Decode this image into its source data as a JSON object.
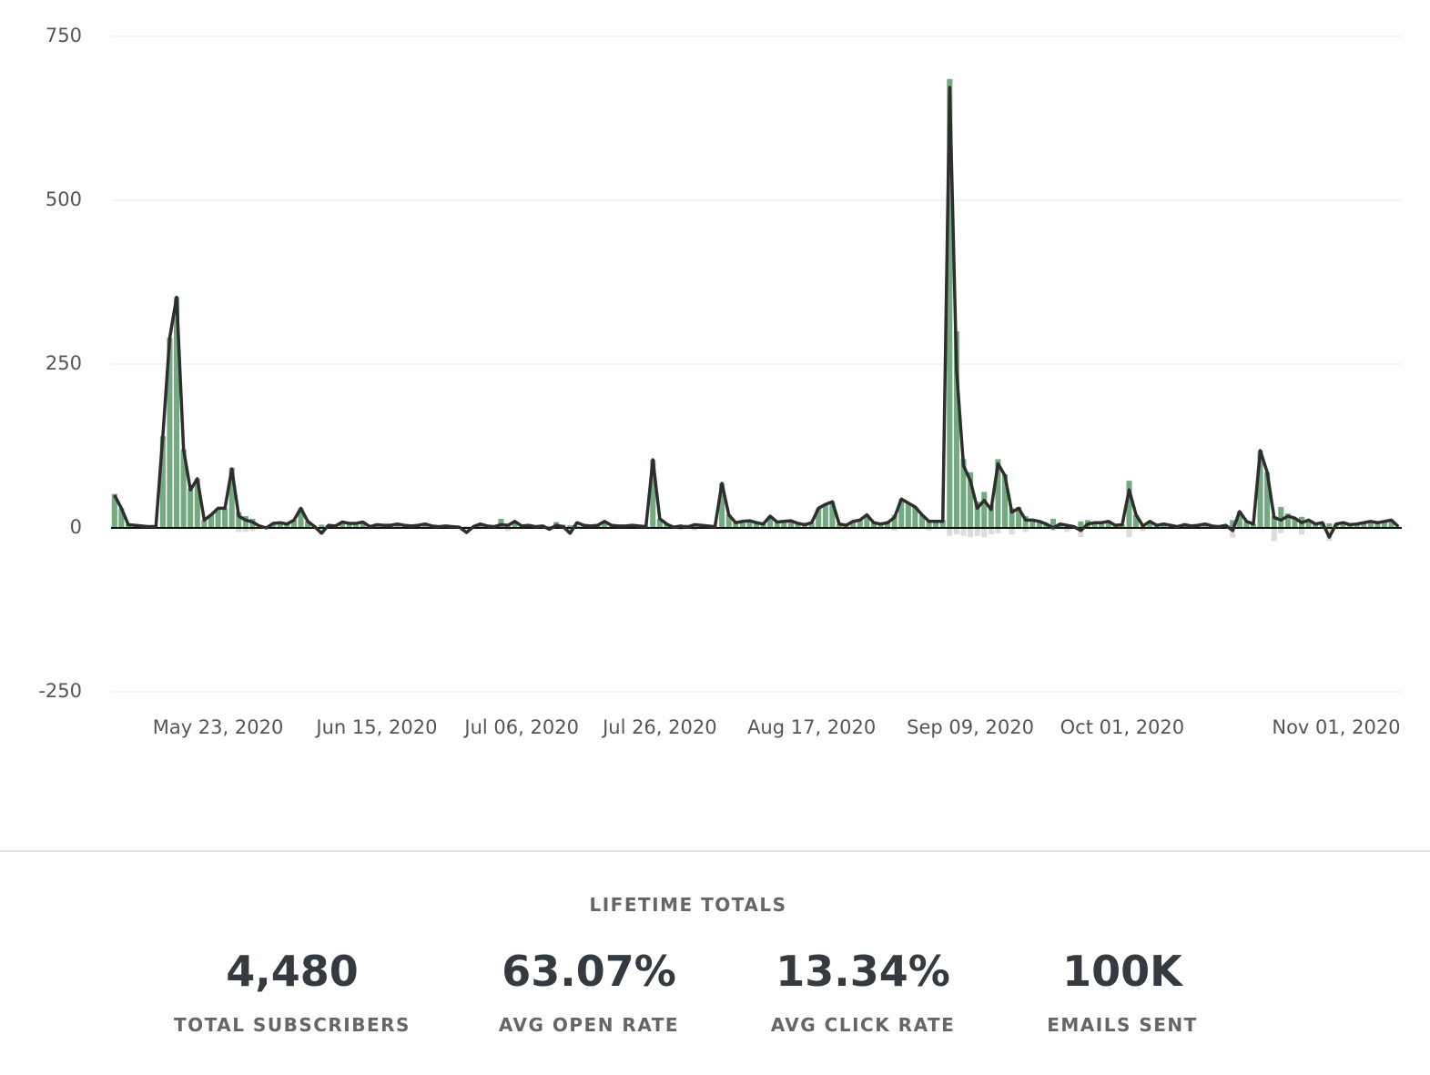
{
  "chart_data": {
    "type": "bar",
    "x": [
      "2020-05-08",
      "2020-05-09",
      "2020-05-10",
      "2020-05-11",
      "2020-05-12",
      "2020-05-13",
      "2020-05-14",
      "2020-05-15",
      "2020-05-16",
      "2020-05-17",
      "2020-05-18",
      "2020-05-19",
      "2020-05-20",
      "2020-05-21",
      "2020-05-22",
      "2020-05-23",
      "2020-05-24",
      "2020-05-25",
      "2020-05-26",
      "2020-05-27",
      "2020-05-28",
      "2020-05-29",
      "2020-05-30",
      "2020-05-31",
      "2020-06-01",
      "2020-06-02",
      "2020-06-03",
      "2020-06-04",
      "2020-06-05",
      "2020-06-06",
      "2020-06-07",
      "2020-06-08",
      "2020-06-09",
      "2020-06-10",
      "2020-06-11",
      "2020-06-12",
      "2020-06-13",
      "2020-06-14",
      "2020-06-15",
      "2020-06-16",
      "2020-06-17",
      "2020-06-18",
      "2020-06-19",
      "2020-06-20",
      "2020-06-21",
      "2020-06-22",
      "2020-06-23",
      "2020-06-24",
      "2020-06-25",
      "2020-06-26",
      "2020-06-27",
      "2020-06-28",
      "2020-06-29",
      "2020-06-30",
      "2020-07-01",
      "2020-07-02",
      "2020-07-03",
      "2020-07-04",
      "2020-07-05",
      "2020-07-06",
      "2020-07-07",
      "2020-07-08",
      "2020-07-09",
      "2020-07-10",
      "2020-07-11",
      "2020-07-12",
      "2020-07-13",
      "2020-07-14",
      "2020-07-15",
      "2020-07-16",
      "2020-07-17",
      "2020-07-18",
      "2020-07-19",
      "2020-07-20",
      "2020-07-21",
      "2020-07-22",
      "2020-07-23",
      "2020-07-24",
      "2020-07-25",
      "2020-07-26",
      "2020-07-27",
      "2020-07-28",
      "2020-07-29",
      "2020-07-30",
      "2020-07-31",
      "2020-08-01",
      "2020-08-02",
      "2020-08-03",
      "2020-08-04",
      "2020-08-05",
      "2020-08-06",
      "2020-08-07",
      "2020-08-08",
      "2020-08-09",
      "2020-08-10",
      "2020-08-11",
      "2020-08-12",
      "2020-08-13",
      "2020-08-14",
      "2020-08-15",
      "2020-08-16",
      "2020-08-17",
      "2020-08-18",
      "2020-08-19",
      "2020-08-20",
      "2020-08-21",
      "2020-08-22",
      "2020-08-23",
      "2020-08-24",
      "2020-08-25",
      "2020-08-26",
      "2020-08-27",
      "2020-08-28",
      "2020-08-29",
      "2020-08-30",
      "2020-08-31",
      "2020-09-01",
      "2020-09-02",
      "2020-09-03",
      "2020-09-04",
      "2020-09-05",
      "2020-09-06",
      "2020-09-07",
      "2020-09-08",
      "2020-09-09",
      "2020-09-10",
      "2020-09-11",
      "2020-09-12",
      "2020-09-13",
      "2020-09-14",
      "2020-09-15",
      "2020-09-16",
      "2020-09-17",
      "2020-09-18",
      "2020-09-19",
      "2020-09-20",
      "2020-09-21",
      "2020-09-22",
      "2020-09-23",
      "2020-09-24",
      "2020-09-25",
      "2020-09-26",
      "2020-09-27",
      "2020-09-28",
      "2020-09-29",
      "2020-09-30",
      "2020-10-01",
      "2020-10-02",
      "2020-10-03",
      "2020-10-04",
      "2020-10-05",
      "2020-10-06",
      "2020-10-07",
      "2020-10-08",
      "2020-10-09",
      "2020-10-10",
      "2020-10-11",
      "2020-10-12",
      "2020-10-13",
      "2020-10-14",
      "2020-10-15",
      "2020-10-16",
      "2020-10-17",
      "2020-10-18",
      "2020-10-19",
      "2020-10-20",
      "2020-10-21",
      "2020-10-22",
      "2020-10-23",
      "2020-10-24",
      "2020-10-25",
      "2020-10-26",
      "2020-10-27",
      "2020-10-28",
      "2020-10-29",
      "2020-10-30",
      "2020-10-31",
      "2020-11-01",
      "2020-11-02",
      "2020-11-03",
      "2020-11-04",
      "2020-11-05",
      "2020-11-06",
      "2020-11-07",
      "2020-11-08",
      "2020-11-09",
      "2020-11-10"
    ],
    "xlim": [
      "2020-05-08",
      "2020-11-10"
    ],
    "xticks": [
      {
        "value": "2020-05-23",
        "label": "May 23, 2020"
      },
      {
        "value": "2020-06-15",
        "label": "Jun 15, 2020"
      },
      {
        "value": "2020-07-06",
        "label": "Jul 06, 2020"
      },
      {
        "value": "2020-07-26",
        "label": "Jul 26, 2020"
      },
      {
        "value": "2020-08-17",
        "label": "Aug 17, 2020"
      },
      {
        "value": "2020-09-09",
        "label": "Sep 09, 2020"
      },
      {
        "value": "2020-10-01",
        "label": "Oct 01, 2020"
      },
      {
        "value": "2020-11-01",
        "label": "Nov 01, 2020"
      }
    ],
    "ylim": [
      -250,
      750
    ],
    "yticks": [
      750,
      500,
      250,
      0,
      -250
    ],
    "grid": true,
    "series": [
      {
        "type": "bar",
        "color": "#74aa80",
        "values": [
          52,
          30,
          6,
          4,
          3,
          3,
          2,
          140,
          290,
          352,
          120,
          60,
          75,
          12,
          20,
          30,
          30,
          92,
          24,
          18,
          14,
          4,
          1,
          7,
          9,
          7,
          12,
          30,
          10,
          2,
          5,
          4,
          3,
          9,
          7,
          7,
          9,
          2,
          5,
          4,
          4,
          6,
          4,
          3,
          4,
          6,
          3,
          2,
          3,
          2,
          1,
          2,
          2,
          6,
          3,
          2,
          14,
          4,
          10,
          3,
          4,
          2,
          5,
          3,
          9,
          5,
          4,
          3,
          4,
          5,
          4,
          10,
          4,
          3,
          3,
          4,
          3,
          2,
          104,
          14,
          6,
          4,
          3,
          5,
          5,
          4,
          3,
          2,
          68,
          20,
          8,
          10,
          11,
          8,
          6,
          18,
          9,
          10,
          11,
          7,
          5,
          8,
          30,
          36,
          40,
          6,
          4,
          10,
          12,
          20,
          8,
          6,
          8,
          20,
          44,
          38,
          32,
          20,
          12,
          10,
          12,
          685,
          300,
          105,
          85,
          40,
          55,
          35,
          105,
          82,
          30,
          32,
          18,
          12,
          10,
          6,
          14,
          6,
          4,
          2,
          10,
          12,
          8,
          8,
          10,
          4,
          5,
          72,
          20,
          6,
          10,
          4,
          6,
          4,
          2,
          5,
          3,
          4,
          6,
          3,
          2,
          4,
          12,
          25,
          10,
          6,
          118,
          85,
          18,
          32,
          22,
          15,
          17,
          12,
          6,
          8,
          7,
          6,
          8,
          5,
          6,
          8,
          10,
          8,
          10,
          12,
          2
        ]
      },
      {
        "type": "bar",
        "color": "#dcdcdc",
        "values": [
          0,
          0,
          0,
          0,
          0,
          0,
          0,
          0,
          0,
          0,
          0,
          0,
          0,
          0,
          0,
          0,
          0,
          0,
          -6,
          -6,
          -5,
          0,
          0,
          0,
          0,
          0,
          0,
          0,
          0,
          0,
          -10,
          0,
          0,
          0,
          0,
          0,
          0,
          0,
          0,
          0,
          0,
          0,
          0,
          0,
          0,
          0,
          0,
          0,
          0,
          0,
          0,
          -8,
          0,
          0,
          0,
          0,
          0,
          -5,
          0,
          0,
          0,
          0,
          0,
          0,
          0,
          0,
          -10,
          0,
          0,
          0,
          0,
          0,
          0,
          0,
          0,
          0,
          0,
          0,
          0,
          0,
          0,
          0,
          -3,
          0,
          -4,
          0,
          0,
          0,
          0,
          0,
          0,
          0,
          0,
          0,
          0,
          0,
          0,
          0,
          0,
          0,
          0,
          0,
          0,
          0,
          0,
          0,
          0,
          0,
          0,
          0,
          0,
          0,
          0,
          -4,
          0,
          0,
          0,
          0,
          -4,
          0,
          0,
          -12,
          -10,
          -12,
          -14,
          -12,
          -14,
          -10,
          -8,
          0,
          -10,
          0,
          -6,
          0,
          0,
          0,
          -4,
          0,
          -6,
          0,
          -14,
          0,
          0,
          0,
          0,
          0,
          0,
          -14,
          0,
          -5,
          0,
          0,
          0,
          0,
          0,
          0,
          0,
          0,
          0,
          0,
          0,
          0,
          -15,
          0,
          0,
          0,
          0,
          0,
          -20,
          -8,
          0,
          0,
          -10,
          0,
          0,
          0,
          -20,
          0,
          0,
          0,
          0,
          0,
          0,
          0,
          0,
          0,
          0
        ]
      },
      {
        "type": "line",
        "color": "#2e2e2e",
        "values": [
          50,
          30,
          5,
          4,
          3,
          2,
          2,
          140,
          290,
          352,
          120,
          58,
          75,
          12,
          20,
          30,
          30,
          90,
          18,
          12,
          9,
          3,
          0,
          7,
          8,
          6,
          12,
          30,
          10,
          2,
          -8,
          4,
          3,
          9,
          7,
          7,
          9,
          2,
          5,
          4,
          4,
          6,
          4,
          3,
          4,
          6,
          3,
          2,
          3,
          2,
          1,
          -7,
          2,
          6,
          3,
          2,
          5,
          4,
          10,
          3,
          4,
          2,
          3,
          -2,
          4,
          2,
          -8,
          8,
          4,
          3,
          4,
          10,
          4,
          3,
          3,
          4,
          3,
          2,
          104,
          14,
          6,
          1,
          3,
          1,
          5,
          4,
          3,
          2,
          68,
          20,
          8,
          10,
          11,
          8,
          6,
          18,
          9,
          10,
          11,
          7,
          5,
          8,
          30,
          36,
          40,
          6,
          4,
          10,
          12,
          20,
          8,
          6,
          8,
          16,
          44,
          38,
          32,
          20,
          10,
          10,
          10,
          672,
          240,
          95,
          72,
          30,
          42,
          28,
          98,
          80,
          24,
          30,
          12,
          12,
          10,
          6,
          0,
          6,
          4,
          2,
          -4,
          6,
          8,
          8,
          10,
          4,
          5,
          58,
          20,
          3,
          10,
          4,
          6,
          4,
          2,
          5,
          3,
          4,
          6,
          3,
          2,
          4,
          -4,
          25,
          10,
          6,
          118,
          85,
          16,
          12,
          18,
          15,
          8,
          12,
          6,
          8,
          -14,
          6,
          8,
          5,
          6,
          8,
          10,
          8,
          10,
          12,
          2
        ]
      }
    ]
  },
  "stats": {
    "title": "LIFETIME TOTALS",
    "items": [
      {
        "value": "4,480",
        "label": "TOTAL SUBSCRIBERS"
      },
      {
        "value": "63.07%",
        "label": "AVG OPEN RATE"
      },
      {
        "value": "13.34%",
        "label": "AVG CLICK RATE"
      },
      {
        "value": "100K",
        "label": "EMAILS SENT"
      }
    ]
  }
}
